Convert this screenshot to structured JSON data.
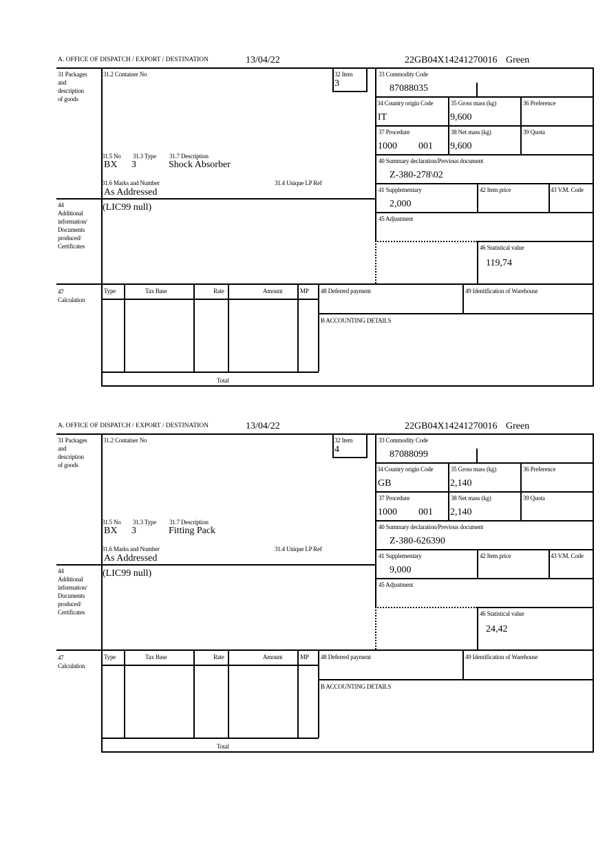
{
  "labels": {
    "office": "A. OFFICE OF DISPATCH / EXPORT / DESTINATION",
    "packages": [
      "31 Packages",
      "and",
      "description",
      "of goods"
    ],
    "container_no": "31.2 Container No",
    "item": "32 Item",
    "commodity_code": "33 Commodity Code",
    "country_origin": "34 Country origin Code",
    "gross_mass": "35 Gross mass (kg)",
    "preference": "36 Preference",
    "procedure": "37 Procedure",
    "net_mass": "38 Net mass (kg)",
    "quota": "39 Quota",
    "previous_document": "40 Summary declaration/Previous document",
    "supplementary": "41 Supplementary",
    "item_price": "42 Item price",
    "vm_code": "43 V.M. Code",
    "adjustment": "45 Adjustment",
    "statistical_value": "46 Statistical value",
    "package_no": "31.5 No",
    "package_type": "31.3 Type",
    "description": "31.7 Description",
    "marks": "31.6 Marks and Number",
    "unique_ref": "31.4 Unique LP Ref",
    "additional": [
      "44",
      "Additional",
      "information/",
      "Documents",
      "produced/",
      "Certificates"
    ],
    "calculation": [
      "47",
      "Calculation"
    ],
    "calc_columns": [
      "Type",
      "Tax Base",
      "Rate",
      "Amount",
      "MP"
    ],
    "total": "Total",
    "deferred_payment": "48 Deferred payment",
    "warehouse": "49 Identification of Warehouse",
    "accounting": "B ACCOUNTING DETAILS"
  },
  "blocks": [
    {
      "date": "13/04/22",
      "reference": "22GB04X14241270016",
      "route": "Green",
      "item": "3",
      "commodity_code": "87088035",
      "country_origin": "IT",
      "gross_mass": "9,600",
      "procedure": "1000",
      "procedure_additional": "001",
      "net_mass": "9,600",
      "previous_document": "Z-380-278\\02",
      "supplementary": "2,000",
      "statistical_value": "119,74",
      "package_no": "BX",
      "package_type": "3",
      "description": "Shock Absorber",
      "marks": "As Addressed",
      "additional_info": "(LIC99 null)"
    },
    {
      "date": "13/04/22",
      "reference": "22GB04X14241270016",
      "route": "Green",
      "item": "4",
      "commodity_code": "87088099",
      "country_origin": "GB",
      "gross_mass": "2,140",
      "procedure": "1000",
      "procedure_additional": "001",
      "net_mass": "2,140",
      "previous_document": "Z-380-626390",
      "supplementary": "9,000",
      "statistical_value": "24,42",
      "package_no": "BX",
      "package_type": "3",
      "description": "Fitting Pack",
      "marks": "As Addressed",
      "additional_info": "(LIC99 null)"
    }
  ]
}
